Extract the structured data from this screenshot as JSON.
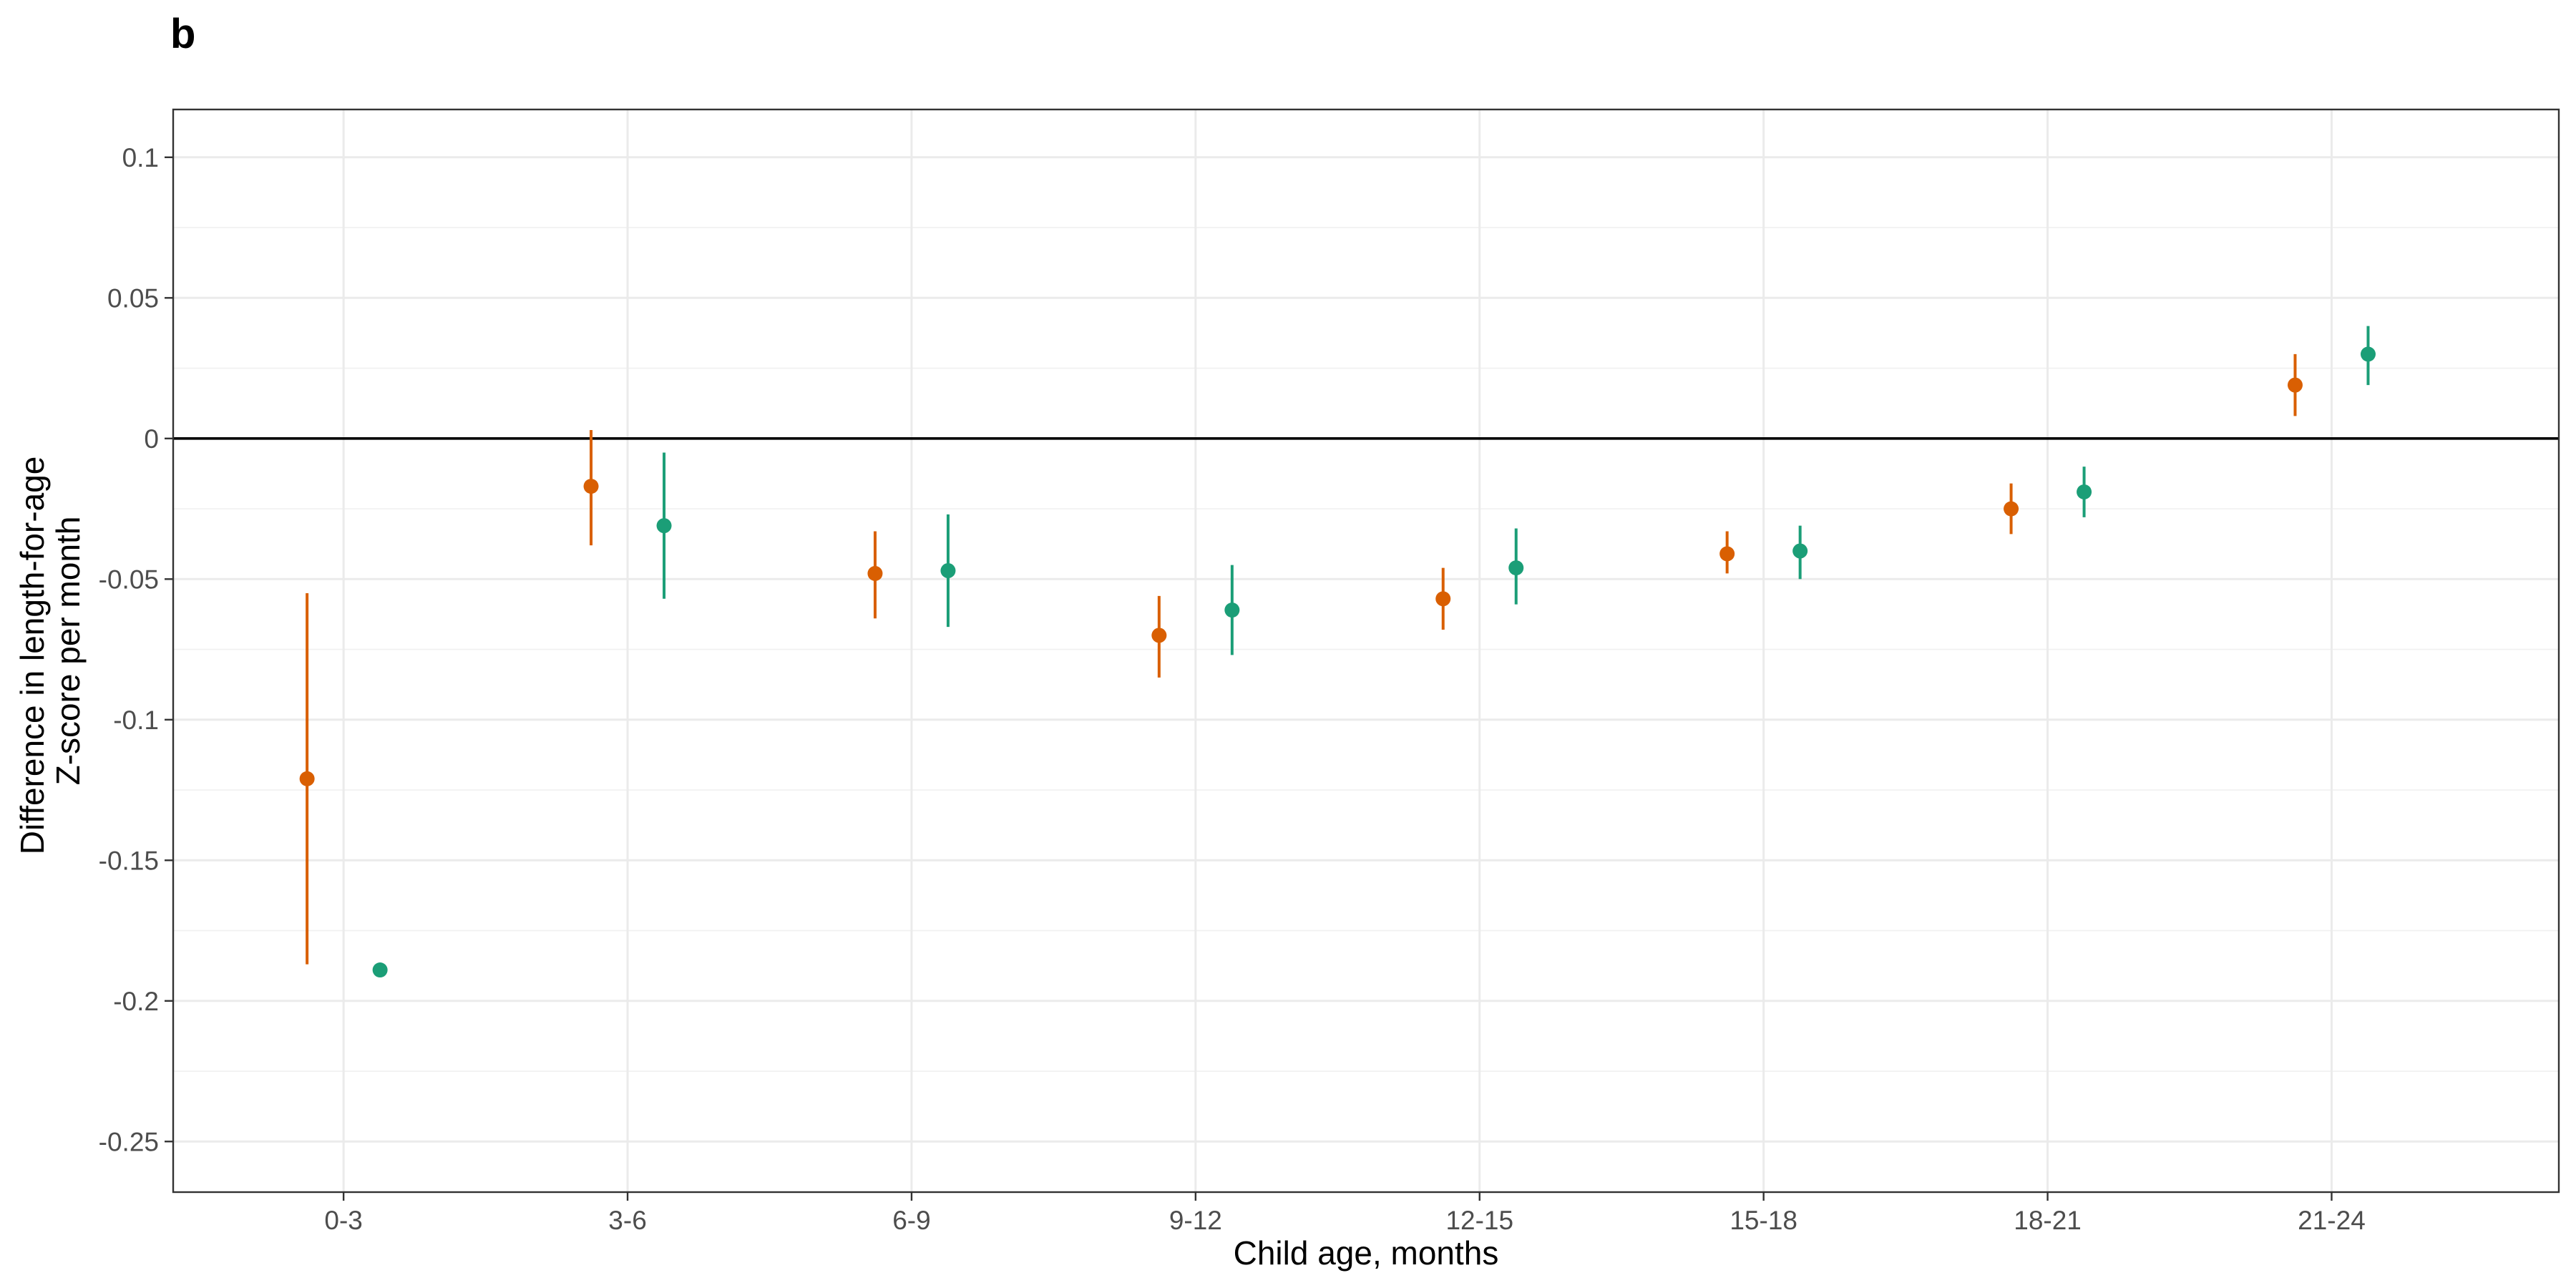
{
  "panel_label": "b",
  "chart_data": {
    "type": "scatter",
    "subtype": "dot-with-error-bars",
    "title": "",
    "xlabel": "Child age, months",
    "ylabel_lines": [
      "Difference in length-for-age",
      "Z-score per month"
    ],
    "categories": [
      "0-3",
      "3-6",
      "6-9",
      "9-12",
      "12-15",
      "15-18",
      "18-21",
      "21-24"
    ],
    "ylim": [
      -0.268,
      0.117
    ],
    "yticks": [
      0.1,
      0.05,
      0,
      -0.05,
      -0.1,
      -0.15,
      -0.2,
      -0.25
    ],
    "ytick_labels": [
      "0.1",
      "0.05",
      "0",
      "-0.05",
      "-0.1",
      "-0.15",
      "-0.2",
      "-0.25"
    ],
    "reference_line": 0,
    "grid": true,
    "legend": "none",
    "series": [
      {
        "color": "#D95F02",
        "values": [
          -0.121,
          -0.017,
          -0.048,
          -0.07,
          -0.057,
          -0.041,
          -0.025,
          0.019
        ],
        "lower": [
          -0.187,
          -0.038,
          -0.064,
          -0.085,
          -0.068,
          -0.048,
          -0.034,
          0.008
        ],
        "upper": [
          -0.055,
          0.003,
          -0.033,
          -0.056,
          -0.046,
          -0.033,
          -0.016,
          0.03
        ]
      },
      {
        "color": "#1B9E77",
        "values": [
          -0.189,
          -0.031,
          -0.047,
          -0.061,
          -0.046,
          -0.04,
          -0.019,
          0.03
        ],
        "lower": [
          -0.189,
          -0.057,
          -0.067,
          -0.077,
          -0.059,
          -0.05,
          -0.028,
          0.019
        ],
        "upper": [
          -0.189,
          -0.005,
          -0.027,
          -0.045,
          -0.032,
          -0.031,
          -0.01,
          0.04
        ]
      }
    ]
  }
}
